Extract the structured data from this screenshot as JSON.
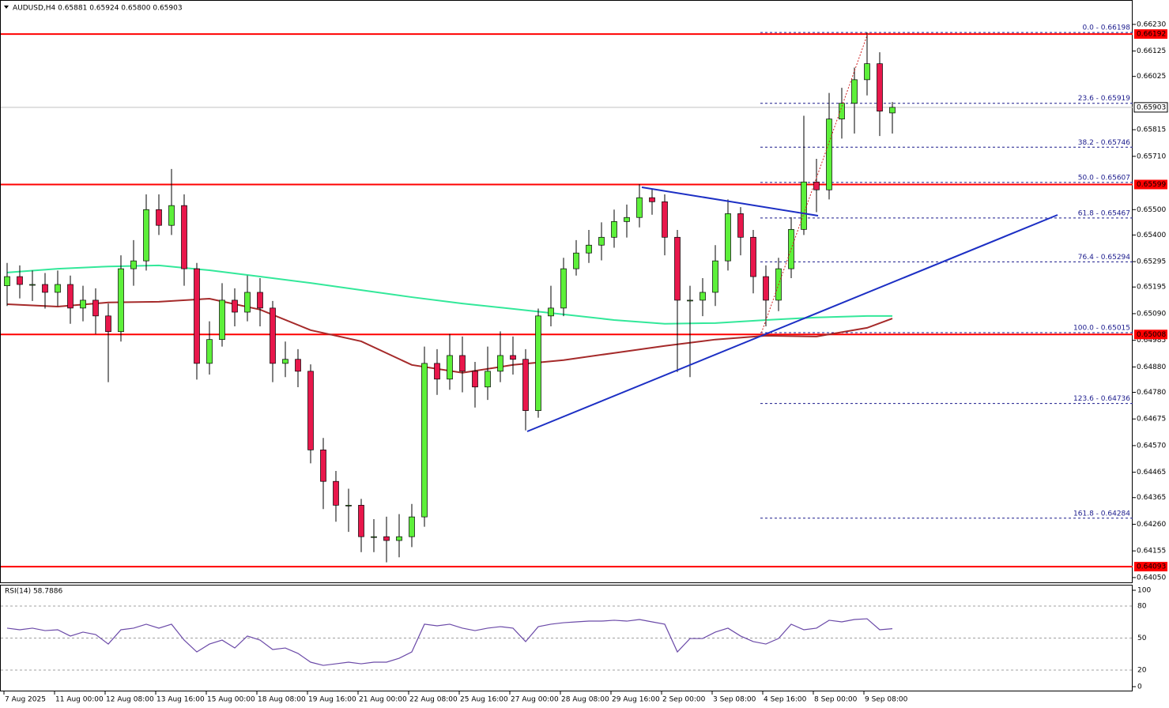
{
  "chart_data": [
    {
      "type": "candlestick",
      "title": "AUDUSD,H4  0.65881 0.65924 0.65800 0.65903",
      "up_color": "#5df03a",
      "down_color": "#e8174b",
      "open": [
        0.652,
        0.65236,
        0.65205,
        0.65205,
        0.65174,
        0.65205,
        0.65112,
        0.65143,
        0.65081,
        0.65019,
        0.65267,
        0.65298,
        0.655,
        0.65438,
        0.65516,
        0.65267,
        0.64894,
        0.64988,
        0.65143,
        0.65096,
        0.65174,
        0.65112,
        0.64894,
        0.6491,
        0.64863,
        0.64553,
        0.64429,
        0.64335,
        0.64335,
        0.64211,
        0.64211,
        0.64196,
        0.64211,
        0.64289,
        0.64894,
        0.64832,
        0.64925,
        0.64863,
        0.64801,
        0.64863,
        0.64925,
        0.6491,
        0.64708,
        0.65081,
        0.65112,
        0.65267,
        0.65329,
        0.6536,
        0.65391,
        0.65453,
        0.65469,
        0.65547,
        0.65531,
        0.65391,
        0.65143,
        0.65143,
        0.65174,
        0.65298,
        0.65484,
        0.65391,
        0.65236,
        0.65143,
        0.65267,
        0.65422,
        0.65609,
        0.65578,
        0.65857,
        0.65919,
        0.66012,
        0.66075,
        0.65881
      ],
      "high": [
        0.6529,
        0.6528,
        0.6526,
        0.6525,
        0.6526,
        0.6524,
        0.652,
        0.6519,
        0.6513,
        0.6532,
        0.6538,
        0.6556,
        0.6556,
        0.6566,
        0.6556,
        0.6529,
        0.6506,
        0.6521,
        0.6519,
        0.6524,
        0.6523,
        0.6514,
        0.6498,
        0.6495,
        0.6489,
        0.646,
        0.6447,
        0.644,
        0.6436,
        0.6428,
        0.6429,
        0.643,
        0.6434,
        0.6496,
        0.6495,
        0.6501,
        0.65,
        0.649,
        0.6496,
        0.6502,
        0.65,
        0.6495,
        0.6511,
        0.652,
        0.6531,
        0.6538,
        0.6542,
        0.6545,
        0.655,
        0.6552,
        0.656,
        0.6558,
        0.6556,
        0.6542,
        0.652,
        0.6523,
        0.6536,
        0.6554,
        0.6551,
        0.6542,
        0.6528,
        0.6531,
        0.6547,
        0.6587,
        0.657,
        0.6596,
        0.6598,
        0.6606,
        0.66198,
        0.6612,
        0.65924
      ],
      "low": [
        0.6512,
        0.6515,
        0.6514,
        0.6511,
        0.6512,
        0.6505,
        0.6506,
        0.6501,
        0.6482,
        0.6498,
        0.652,
        0.6526,
        0.654,
        0.654,
        0.652,
        0.6483,
        0.6485,
        0.6496,
        0.6504,
        0.6506,
        0.6504,
        0.6482,
        0.6484,
        0.648,
        0.645,
        0.6432,
        0.6427,
        0.6423,
        0.6415,
        0.6415,
        0.6411,
        0.6413,
        0.6417,
        0.6425,
        0.6477,
        0.6479,
        0.6478,
        0.6472,
        0.6475,
        0.6482,
        0.6485,
        0.6463,
        0.6468,
        0.6504,
        0.6508,
        0.6524,
        0.6529,
        0.653,
        0.6535,
        0.6539,
        0.6543,
        0.6548,
        0.6532,
        0.6486,
        0.6484,
        0.6508,
        0.6512,
        0.6526,
        0.6532,
        0.6517,
        0.6504,
        0.651,
        0.6523,
        0.654,
        0.6549,
        0.6554,
        0.6578,
        0.658,
        0.6595,
        0.6579,
        0.658
      ],
      "close": [
        0.65236,
        0.65205,
        0.65205,
        0.65174,
        0.65205,
        0.65112,
        0.65143,
        0.65081,
        0.65019,
        0.65267,
        0.65298,
        0.655,
        0.65438,
        0.65516,
        0.65267,
        0.64894,
        0.64988,
        0.65143,
        0.65096,
        0.65174,
        0.65112,
        0.64894,
        0.6491,
        0.64863,
        0.64553,
        0.64429,
        0.64335,
        0.64335,
        0.64211,
        0.64211,
        0.64196,
        0.64211,
        0.64289,
        0.64894,
        0.64832,
        0.64925,
        0.64863,
        0.64801,
        0.64863,
        0.64925,
        0.6491,
        0.64708,
        0.65081,
        0.65112,
        0.65267,
        0.65329,
        0.6536,
        0.65391,
        0.65453,
        0.65469,
        0.65547,
        0.65531,
        0.65391,
        0.65143,
        0.65143,
        0.65174,
        0.65298,
        0.65484,
        0.65391,
        0.65236,
        0.65143,
        0.65267,
        0.65422,
        0.65609,
        0.65578,
        0.65857,
        0.65919,
        0.66012,
        0.66075,
        0.65888,
        0.65903
      ],
      "lines": [
        {
          "color": "#33e89a",
          "x": [
            0,
            4,
            8,
            12,
            16,
            20,
            24,
            28,
            32,
            36,
            40,
            44,
            48,
            52,
            56,
            60,
            64,
            68,
            70
          ],
          "values": [
            0.65252,
            0.65267,
            0.65276,
            0.6528,
            0.65261,
            0.65236,
            0.65211,
            0.65183,
            0.65155,
            0.6513,
            0.65109,
            0.65087,
            0.65065,
            0.6505,
            0.65053,
            0.65065,
            0.65075,
            0.65081,
            0.65081
          ]
        },
        {
          "color": "#a52a2a",
          "x": [
            0,
            4,
            8,
            12,
            16,
            20,
            24,
            28,
            32,
            36,
            40,
            44,
            48,
            52,
            56,
            60,
            64,
            68,
            70
          ],
          "values": [
            0.65127,
            0.65118,
            0.65134,
            0.65137,
            0.65149,
            0.65106,
            0.65025,
            0.64981,
            0.64888,
            0.64857,
            0.64888,
            0.64907,
            0.64935,
            0.64963,
            0.64988,
            0.65003,
            0.65,
            0.65034,
            0.65071
          ]
        }
      ],
      "levels": [
        {
          "value": 0.66192,
          "color": "#ff0000"
        },
        {
          "value": 0.65599,
          "color": "#ff0000"
        },
        {
          "value": 0.65008,
          "color": "#ff0000"
        },
        {
          "value": 0.64093,
          "color": "#ff0000"
        }
      ],
      "current_price": 0.65903,
      "fib_levels": [
        {
          "label": "0.0 - 0.66198",
          "value": 0.66198
        },
        {
          "label": "23.6 - 0.65919",
          "value": 0.65919
        },
        {
          "label": "38.2 - 0.65746",
          "value": 0.65746
        },
        {
          "label": "50.0 - 0.65607",
          "value": 0.65607
        },
        {
          "label": "61.8 - 0.65467",
          "value": 0.65467
        },
        {
          "label": "76.4 - 0.65294",
          "value": 0.65294
        },
        {
          "label": "100.0 - 0.65015",
          "value": 0.65015
        },
        {
          "label": "123.6 - 0.64736",
          "value": 0.64736
        },
        {
          "label": "161.8 - 0.64284",
          "value": 0.64284
        }
      ],
      "ylim": [
        0.64031,
        0.66323
      ],
      "yticks": [
        {
          "value": 0.6623,
          "label": "0.66230"
        },
        0.66125,
        0.66025,
        0.65815,
        {
          "value": 0.6571,
          "label": "0.65710"
        },
        {
          "value": 0.655,
          "label": "0.65500"
        },
        {
          "value": 0.654,
          "label": "0.65400"
        },
        0.65295,
        0.65195,
        {
          "value": 0.6509,
          "label": "0.65090"
        },
        0.64985,
        {
          "value": 0.6488,
          "label": "0.64880"
        },
        {
          "value": 0.6478,
          "label": "0.64780"
        },
        0.64675,
        {
          "value": 0.6457,
          "label": "0.64570"
        },
        0.64465,
        0.64365,
        {
          "value": 0.6426,
          "label": "0.64260"
        },
        0.64155,
        {
          "value": 0.6405,
          "label": "0.64050"
        }
      ],
      "xticks": [
        {
          "value": 0,
          "label": "7 Aug 2025"
        },
        {
          "value": 4,
          "label": "11 Aug 00:00"
        },
        {
          "value": 8,
          "label": "12 Aug 08:00"
        },
        {
          "value": 12,
          "label": "13 Aug 16:00"
        },
        {
          "value": 16,
          "label": "15 Aug 00:00"
        },
        {
          "value": 20,
          "label": "18 Aug 08:00"
        },
        {
          "value": 24,
          "label": "19 Aug 16:00"
        },
        {
          "value": 28,
          "label": "21 Aug 00:00"
        },
        {
          "value": 32,
          "label": "22 Aug 08:00"
        },
        {
          "value": 36,
          "label": "25 Aug 16:00"
        },
        {
          "value": 40,
          "label": "27 Aug 00:00"
        },
        {
          "value": 44,
          "label": "28 Aug 08:00"
        },
        {
          "value": 48,
          "label": "29 Aug 16:00"
        },
        {
          "value": 52,
          "label": "2 Sep 00:00"
        },
        {
          "value": 56,
          "label": "3 Sep 08:00"
        },
        {
          "value": 60,
          "label": "4 Sep 16:00"
        },
        {
          "value": 64,
          "label": "8 Sep 00:00"
        },
        {
          "value": 68,
          "label": "9 Sep 08:00"
        }
      ]
    },
    {
      "type": "line",
      "title": "RSI(14) 58.7886",
      "color": "#6b4aa8",
      "values": [
        59.3,
        57.8,
        59.3,
        57.0,
        57.8,
        51.9,
        55.6,
        53.3,
        44.4,
        57.8,
        59.3,
        63.0,
        59.3,
        63.0,
        48.1,
        37.0,
        44.4,
        48.1,
        40.7,
        51.9,
        48.1,
        39.3,
        40.7,
        35.6,
        27.4,
        24.4,
        25.9,
        27.4,
        25.9,
        27.4,
        27.4,
        31.1,
        37.0,
        63.0,
        61.5,
        63.0,
        59.3,
        57.0,
        59.3,
        60.7,
        59.3,
        46.7,
        60.7,
        63.0,
        64.4,
        65.2,
        65.9,
        65.9,
        66.7,
        65.9,
        67.4,
        65.2,
        63.0,
        37.0,
        49.6,
        49.6,
        55.6,
        59.3,
        51.9,
        46.7,
        44.4,
        49.6,
        63.0,
        57.8,
        59.3,
        66.7,
        65.2,
        67.4,
        68.1,
        57.8,
        58.7886
      ],
      "ylim": [
        0,
        100
      ],
      "yticks": [
        100,
        80,
        50,
        20,
        0
      ],
      "grid": true
    }
  ]
}
